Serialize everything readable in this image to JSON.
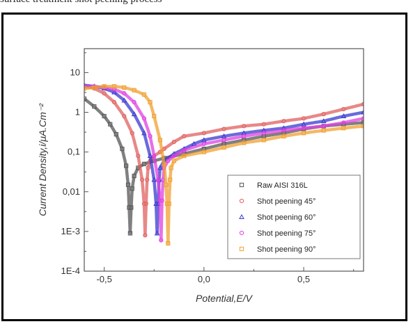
{
  "page": {
    "top_caption": "surface treatment shot peening process"
  },
  "chart_data": {
    "type": "line",
    "title": "",
    "xlabel": "Potential,E/V",
    "ylabel": "Current Density,i/μA.Cm⁻²",
    "xlim": [
      -0.6,
      0.8
    ],
    "ylim": [
      0.0001,
      40
    ],
    "y_scale": "log",
    "grid": false,
    "legend_position": "bottom-right",
    "x_ticks": [
      {
        "value": -0.5,
        "label": "-0,5"
      },
      {
        "value": 0.0,
        "label": "0,0"
      },
      {
        "value": 0.5,
        "label": "0,5"
      }
    ],
    "y_ticks": [
      {
        "value": 0.0001,
        "label": "1E-4"
      },
      {
        "value": 0.001,
        "label": "1E-3"
      },
      {
        "value": 0.01,
        "label": "0,01"
      },
      {
        "value": 0.1,
        "label": "0,1"
      },
      {
        "value": 1,
        "label": "1"
      },
      {
        "value": 10,
        "label": "10"
      }
    ],
    "series": [
      {
        "name": "Raw AISI 316L",
        "color": "#555555",
        "marker": "square",
        "x": [
          -0.6,
          -0.55,
          -0.5,
          -0.47,
          -0.44,
          -0.41,
          -0.39,
          -0.38,
          -0.375,
          -0.37,
          -0.365,
          -0.36,
          -0.35,
          -0.33,
          -0.3,
          -0.25,
          -0.2,
          -0.1,
          0.0,
          0.1,
          0.2,
          0.3,
          0.4,
          0.5,
          0.6,
          0.7,
          0.8
        ],
        "y": [
          2.2,
          1.4,
          0.8,
          0.5,
          0.28,
          0.12,
          0.045,
          0.015,
          0.004,
          0.0009,
          0.004,
          0.012,
          0.025,
          0.04,
          0.05,
          0.06,
          0.07,
          0.09,
          0.12,
          0.16,
          0.2,
          0.25,
          0.3,
          0.38,
          0.45,
          0.5,
          0.55
        ]
      },
      {
        "name": "Shot peening 45°",
        "color": "#e06060",
        "marker": "circle",
        "x": [
          -0.6,
          -0.55,
          -0.5,
          -0.45,
          -0.4,
          -0.36,
          -0.33,
          -0.31,
          -0.3,
          -0.295,
          -0.29,
          -0.285,
          -0.28,
          -0.27,
          -0.25,
          -0.22,
          -0.2,
          -0.15,
          -0.1,
          0.0,
          0.1,
          0.2,
          0.3,
          0.4,
          0.5,
          0.6,
          0.7,
          0.8
        ],
        "y": [
          4.5,
          4.0,
          3.0,
          1.8,
          0.8,
          0.3,
          0.08,
          0.02,
          0.005,
          0.0008,
          0.005,
          0.02,
          0.04,
          0.06,
          0.08,
          0.1,
          0.12,
          0.18,
          0.25,
          0.3,
          0.38,
          0.45,
          0.5,
          0.6,
          0.7,
          0.9,
          1.2,
          1.6
        ]
      },
      {
        "name": "Shot peening 60°",
        "color": "#3a3ad0",
        "marker": "triangle",
        "x": [
          -0.6,
          -0.55,
          -0.5,
          -0.45,
          -0.4,
          -0.35,
          -0.3,
          -0.27,
          -0.25,
          -0.24,
          -0.235,
          -0.23,
          -0.225,
          -0.22,
          -0.2,
          -0.15,
          -0.1,
          -0.05,
          0.0,
          0.1,
          0.2,
          0.3,
          0.4,
          0.5,
          0.6,
          0.7,
          0.8
        ],
        "y": [
          4.8,
          4.5,
          4.0,
          3.2,
          2.0,
          0.9,
          0.3,
          0.08,
          0.02,
          0.005,
          0.0009,
          0.005,
          0.02,
          0.04,
          0.06,
          0.09,
          0.12,
          0.16,
          0.2,
          0.25,
          0.3,
          0.35,
          0.4,
          0.5,
          0.6,
          0.8,
          1.0
        ]
      },
      {
        "name": "Shot peening 75°",
        "color": "#e040e0",
        "marker": "circle",
        "x": [
          -0.6,
          -0.55,
          -0.5,
          -0.45,
          -0.4,
          -0.35,
          -0.3,
          -0.27,
          -0.25,
          -0.23,
          -0.22,
          -0.215,
          -0.21,
          -0.205,
          -0.2,
          -0.18,
          -0.15,
          -0.1,
          0.0,
          0.1,
          0.2,
          0.3,
          0.4,
          0.5,
          0.6,
          0.7,
          0.8
        ],
        "y": [
          4.5,
          4.5,
          4.2,
          3.8,
          3.0,
          1.8,
          0.7,
          0.25,
          0.08,
          0.02,
          0.006,
          0.0006,
          0.006,
          0.02,
          0.04,
          0.06,
          0.08,
          0.11,
          0.16,
          0.2,
          0.25,
          0.3,
          0.35,
          0.4,
          0.45,
          0.55,
          0.7
        ]
      },
      {
        "name": "Shot peening 90°",
        "color": "#f0a030",
        "marker": "square",
        "x": [
          -0.6,
          -0.55,
          -0.5,
          -0.45,
          -0.4,
          -0.35,
          -0.3,
          -0.27,
          -0.25,
          -0.22,
          -0.2,
          -0.19,
          -0.185,
          -0.18,
          -0.175,
          -0.17,
          -0.165,
          -0.15,
          -0.1,
          0.0,
          0.1,
          0.2,
          0.3,
          0.4,
          0.5,
          0.6,
          0.7,
          0.8
        ],
        "y": [
          4.0,
          4.2,
          4.5,
          4.5,
          4.2,
          3.6,
          2.8,
          1.8,
          0.8,
          0.2,
          0.05,
          0.015,
          0.005,
          0.0005,
          0.005,
          0.02,
          0.04,
          0.06,
          0.08,
          0.1,
          0.13,
          0.17,
          0.2,
          0.25,
          0.3,
          0.35,
          0.4,
          0.45
        ]
      }
    ]
  }
}
